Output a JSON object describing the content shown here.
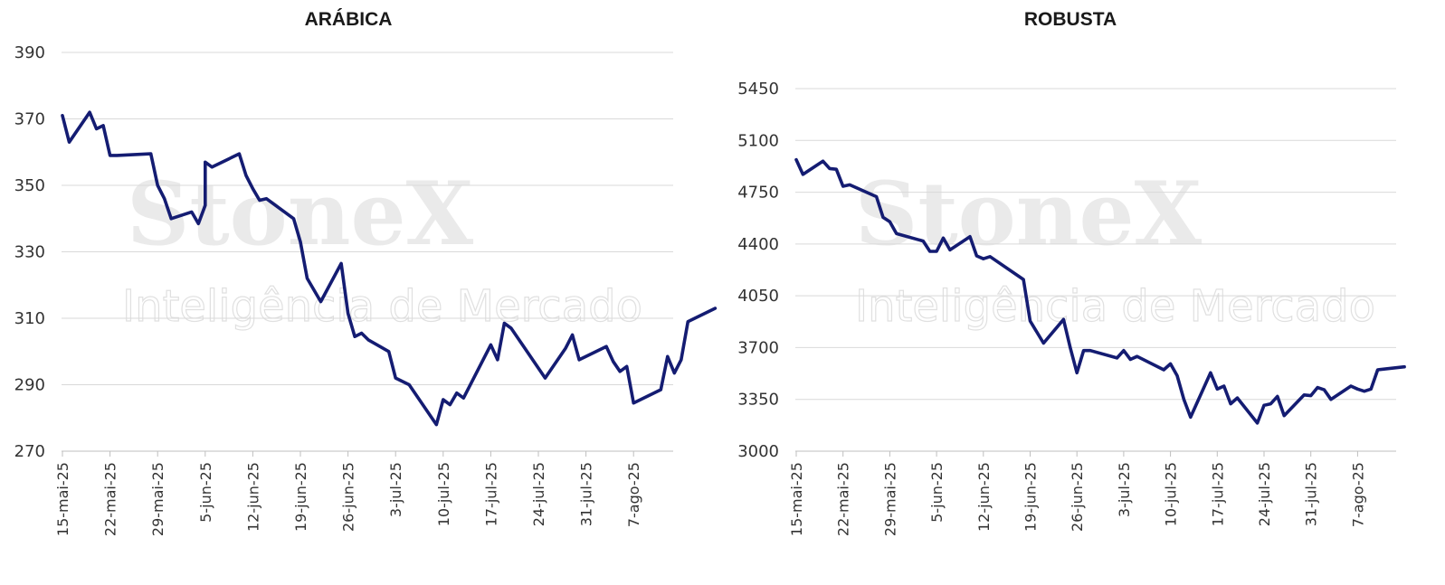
{
  "watermark": {
    "brand": "StoneX",
    "subtitle": "Inteligência de Mercado"
  },
  "colors": {
    "line": "#141c72",
    "grid": "#d9d9d9",
    "axis": "#bfbfbf"
  },
  "chart_data": [
    {
      "type": "line",
      "title": "ARÁBICA",
      "xlabel": "",
      "ylabel": "",
      "ylim": [
        270,
        390
      ],
      "yticks": [
        270,
        290,
        310,
        330,
        350,
        370,
        390
      ],
      "xlim": [
        "15-mai-25",
        "14-ago-25"
      ],
      "xticks": [
        "15-mai-25",
        "22-mai-25",
        "29-mai-25",
        "5-jun-25",
        "12-jun-25",
        "19-jun-25",
        "26-jun-25",
        "3-jul-25",
        "10-jul-25",
        "17-jul-25",
        "24-jul-25",
        "31-jul-25",
        "7-ago-25"
      ],
      "grid": true,
      "legend": "none",
      "series": [
        {
          "points": [
            [
              "15-mai-25",
              371
            ],
            [
              "16-mai-25",
              363
            ],
            [
              "19-mai-25",
              372
            ],
            [
              "20-mai-25",
              367
            ],
            [
              "21-mai-25",
              368
            ],
            [
              "22-mai-25",
              359
            ],
            [
              "23-mai-25",
              359
            ],
            [
              "28-mai-25",
              359.5
            ],
            [
              "29-mai-25",
              350
            ],
            [
              "30-mai-25",
              346
            ],
            [
              "31-mai-25",
              340
            ],
            [
              "3-jun-25",
              342
            ],
            [
              "4-jun-25",
              338.5
            ],
            [
              "5-jun-25",
              344
            ],
            [
              "5-jun-25",
              357
            ],
            [
              "6-jun-25",
              355.5
            ],
            [
              "10-jun-25",
              359.5
            ],
            [
              "11-jun-25",
              353
            ],
            [
              "12-jun-25",
              349
            ],
            [
              "13-jun-25",
              345.5
            ],
            [
              "14-jun-25",
              346
            ],
            [
              "18-jun-25",
              340
            ],
            [
              "19-jun-25",
              333
            ],
            [
              "20-jun-25",
              322
            ],
            [
              "22-jun-25",
              315
            ],
            [
              "25-jun-25",
              326.5
            ],
            [
              "26-jun-25",
              311.5
            ],
            [
              "27-jun-25",
              304.5
            ],
            [
              "28-jun-25",
              305.5
            ],
            [
              "29-jun-25",
              303.5
            ],
            [
              "2-jul-25",
              300
            ],
            [
              "3-jul-25",
              292
            ],
            [
              "5-jul-25",
              290
            ],
            [
              "9-jul-25",
              278
            ],
            [
              "10-jul-25",
              285.5
            ],
            [
              "11-jul-25",
              284
            ],
            [
              "12-jul-25",
              287.5
            ],
            [
              "13-jul-25",
              286
            ],
            [
              "17-jul-25",
              302
            ],
            [
              "18-jul-25",
              297.5
            ],
            [
              "19-jul-25",
              308.5
            ],
            [
              "20-jul-25",
              307
            ],
            [
              "21-jul-25",
              304
            ],
            [
              "25-jul-25",
              292
            ],
            [
              "28-jul-25",
              301
            ],
            [
              "29-jul-25",
              305
            ],
            [
              "30-jul-25",
              297.5
            ],
            [
              "3-ago-25",
              301.5
            ],
            [
              "4-ago-25",
              297
            ],
            [
              "5-ago-25",
              294
            ],
            [
              "6-ago-25",
              295.5
            ],
            [
              "7-ago-25",
              284.5
            ],
            [
              "11-ago-25",
              288.5
            ],
            [
              "12-ago-25",
              298.5
            ],
            [
              "13-ago-25",
              293.5
            ],
            [
              "14-ago-25",
              297.5
            ],
            [
              "15-ago-25",
              309
            ],
            [
              "19-ago-25",
              313
            ]
          ]
        }
      ]
    },
    {
      "type": "line",
      "title": "ROBUSTA",
      "xlabel": "",
      "ylabel": "",
      "ylim": [
        3000,
        5450
      ],
      "yticks": [
        3000,
        3350,
        3700,
        4050,
        4400,
        4750,
        5100,
        5450
      ],
      "xlim": [
        "15-mai-25",
        "14-ago-25"
      ],
      "xticks": [
        "15-mai-25",
        "22-mai-25",
        "29-mai-25",
        "5-jun-25",
        "12-jun-25",
        "19-jun-25",
        "26-jun-25",
        "3-jul-25",
        "10-jul-25",
        "17-jul-25",
        "24-jul-25",
        "31-jul-25",
        "7-ago-25"
      ],
      "grid": true,
      "legend": "none",
      "series": [
        {
          "points": [
            [
              "15-mai-25",
              4970
            ],
            [
              "16-mai-25",
              4870
            ],
            [
              "19-mai-25",
              4960
            ],
            [
              "20-mai-25",
              4910
            ],
            [
              "21-mai-25",
              4905
            ],
            [
              "22-mai-25",
              4790
            ],
            [
              "23-mai-25",
              4800
            ],
            [
              "27-mai-25",
              4720
            ],
            [
              "28-mai-25",
              4580
            ],
            [
              "29-mai-25",
              4550
            ],
            [
              "30-mai-25",
              4470
            ],
            [
              "3-jun-25",
              4420
            ],
            [
              "4-jun-25",
              4350
            ],
            [
              "5-jun-25",
              4350
            ],
            [
              "6-jun-25",
              4440
            ],
            [
              "7-jun-25",
              4360
            ],
            [
              "10-jun-25",
              4450
            ],
            [
              "11-jun-25",
              4320
            ],
            [
              "12-jun-25",
              4300
            ],
            [
              "13-jun-25",
              4315
            ],
            [
              "18-jun-25",
              4160
            ],
            [
              "19-jun-25",
              3880
            ],
            [
              "21-jun-25",
              3730
            ],
            [
              "24-jun-25",
              3890
            ],
            [
              "25-jun-25",
              3700
            ],
            [
              "26-jun-25",
              3530
            ],
            [
              "27-jun-25",
              3680
            ],
            [
              "28-jun-25",
              3680
            ],
            [
              "2-jul-25",
              3630
            ],
            [
              "3-jul-25",
              3680
            ],
            [
              "4-jul-25",
              3620
            ],
            [
              "5-jul-25",
              3640
            ],
            [
              "9-jul-25",
              3550
            ],
            [
              "10-jul-25",
              3590
            ],
            [
              "11-jul-25",
              3510
            ],
            [
              "12-jul-25",
              3350
            ],
            [
              "13-jul-25",
              3230
            ],
            [
              "16-jul-25",
              3530
            ],
            [
              "17-jul-25",
              3420
            ],
            [
              "18-jul-25",
              3440
            ],
            [
              "19-jul-25",
              3320
            ],
            [
              "20-jul-25",
              3360
            ],
            [
              "23-jul-25",
              3190
            ],
            [
              "24-jul-25",
              3310
            ],
            [
              "25-jul-25",
              3320
            ],
            [
              "26-jul-25",
              3370
            ],
            [
              "27-jul-25",
              3240
            ],
            [
              "30-jul-25",
              3380
            ],
            [
              "31-jul-25",
              3375
            ],
            [
              "1-ago-25",
              3430
            ],
            [
              "2-ago-25",
              3415
            ],
            [
              "3-ago-25",
              3350
            ],
            [
              "6-ago-25",
              3440
            ],
            [
              "7-ago-25",
              3420
            ],
            [
              "8-ago-25",
              3405
            ],
            [
              "9-ago-25",
              3420
            ],
            [
              "10-ago-25",
              3550
            ],
            [
              "14-ago-25",
              3570
            ]
          ]
        }
      ]
    }
  ]
}
